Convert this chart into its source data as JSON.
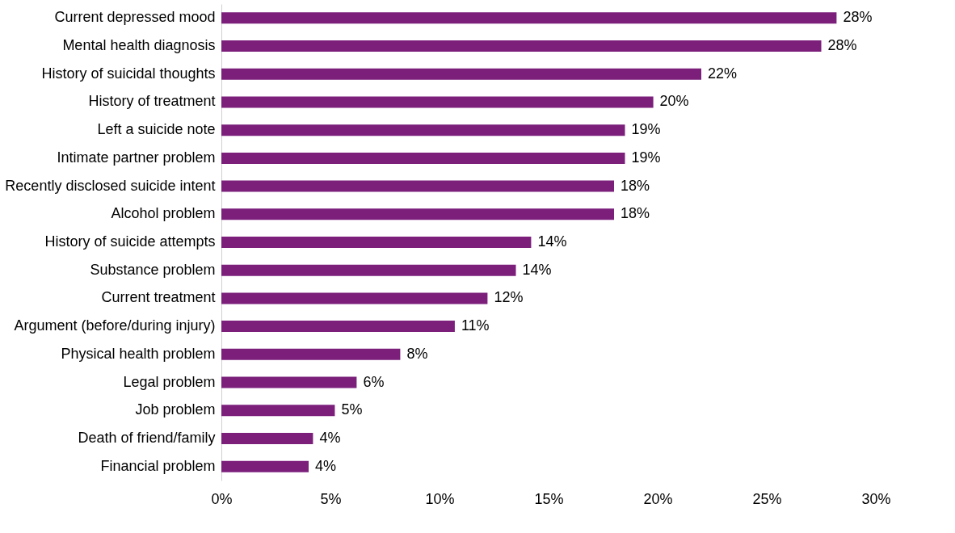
{
  "chart_data": {
    "type": "bar",
    "orientation": "horizontal",
    "categories": [
      "Current depressed mood",
      "Mental health diagnosis",
      "History of suicidal thoughts",
      "History of treatment",
      "Left a suicide note",
      "Intimate partner problem",
      "Recently disclosed suicide intent",
      "Alcohol problem",
      "History of suicide attempts",
      "Substance problem",
      "Current treatment",
      "Argument (before/during injury)",
      "Physical health problem",
      "Legal problem",
      "Job problem",
      "Death of friend/family",
      "Financial problem"
    ],
    "values": [
      28.2,
      27.5,
      22.0,
      19.8,
      18.5,
      18.5,
      18.0,
      18.0,
      14.2,
      13.5,
      12.2,
      10.7,
      8.2,
      6.2,
      5.2,
      4.2,
      4.0
    ],
    "value_labels": [
      "28%",
      "28%",
      "22%",
      "20%",
      "19%",
      "19%",
      "18%",
      "18%",
      "14%",
      "14%",
      "12%",
      "11%",
      "8%",
      "6%",
      "5%",
      "4%",
      "4%"
    ],
    "color": "#7b1f7b",
    "xlim": [
      0,
      30
    ],
    "xticks": [
      {
        "value": 0,
        "label": "0%"
      },
      {
        "value": 5,
        "label": "5%"
      },
      {
        "value": 10,
        "label": "10%"
      },
      {
        "value": 15,
        "label": "15%"
      },
      {
        "value": 20,
        "label": "20%"
      },
      {
        "value": 25,
        "label": "25%"
      },
      {
        "value": 30,
        "label": "30%"
      }
    ],
    "grid": false
  }
}
